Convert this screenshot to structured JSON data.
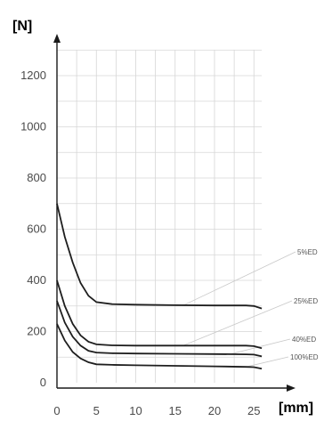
{
  "chart_data": {
    "type": "line",
    "ylabel": "[N]",
    "xlabel": "[mm]",
    "xlim": [
      0,
      26
    ],
    "ylim": [
      0,
      1300
    ],
    "x_ticks": [
      0,
      5,
      10,
      15,
      20,
      25
    ],
    "y_ticks": [
      0,
      200,
      400,
      600,
      800,
      1000,
      1200
    ],
    "y_tick_labels": [
      "0",
      "200",
      "400",
      "600",
      "800",
      "1000",
      "1200"
    ],
    "grid": true,
    "series": [
      {
        "name": "5%ED",
        "x": [
          0,
          1,
          2,
          3,
          4,
          5,
          7,
          10,
          15,
          20,
          24,
          25,
          26
        ],
        "y": [
          700,
          570,
          470,
          390,
          340,
          315,
          307,
          305,
          303,
          302,
          302,
          300,
          290
        ]
      },
      {
        "name": "25%ED",
        "x": [
          0,
          1,
          2,
          3,
          4,
          5,
          7,
          10,
          15,
          20,
          24,
          25,
          26
        ],
        "y": [
          400,
          300,
          230,
          185,
          160,
          150,
          146,
          145,
          145,
          145,
          145,
          143,
          135
        ]
      },
      {
        "name": "40%ED",
        "x": [
          0,
          1,
          2,
          3,
          4,
          5,
          7,
          10,
          15,
          20,
          24,
          25,
          26
        ],
        "y": [
          320,
          235,
          180,
          145,
          125,
          118,
          115,
          114,
          113,
          112,
          111,
          110,
          103
        ]
      },
      {
        "name": "100%ED",
        "x": [
          0,
          1,
          2,
          3,
          4,
          5,
          7,
          10,
          15,
          20,
          24,
          25,
          26
        ],
        "y": [
          230,
          165,
          120,
          95,
          80,
          72,
          70,
          68,
          66,
          64,
          62,
          61,
          55
        ]
      }
    ]
  }
}
